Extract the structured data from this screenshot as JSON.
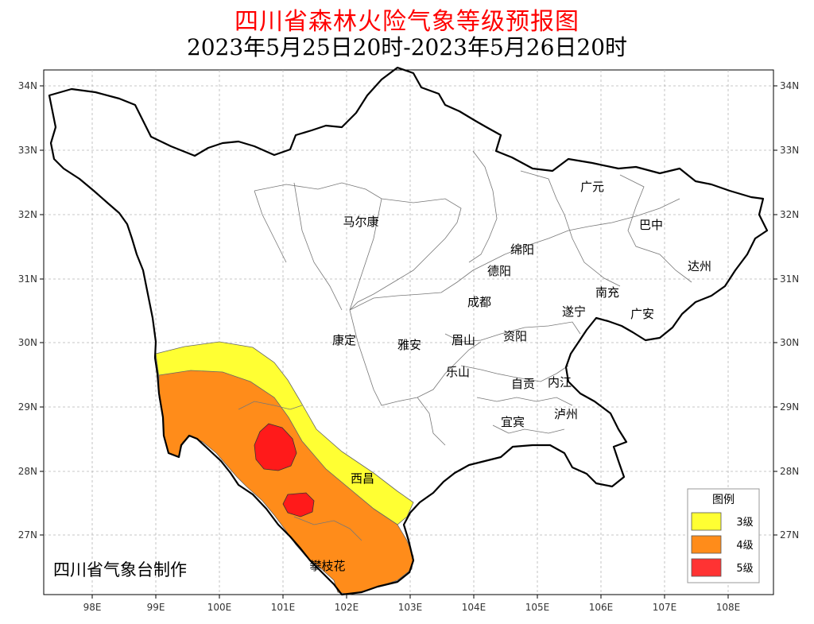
{
  "title": "四川省森林火险气象等级预报图",
  "subtitle": "2023年5月25日20时-2023年5月26日20时",
  "x_ticks": [
    "98E",
    "99E",
    "100E",
    "101E",
    "102E",
    "103E",
    "104E",
    "105E",
    "106E",
    "107E",
    "108E"
  ],
  "y_ticks": [
    "34N",
    "33N",
    "32N",
    "31N",
    "30N",
    "29N",
    "28N",
    "27N"
  ],
  "cities": [
    "马尔康",
    "广元",
    "巴中",
    "绵阳",
    "德阳",
    "达州",
    "南充",
    "成都",
    "遂宁",
    "广安",
    "康定",
    "雅安",
    "眉山",
    "资阳",
    "乐山",
    "自贡",
    "内江",
    "泸州",
    "宜宾",
    "西昌",
    "攀枝花"
  ],
  "maker": "四川省气象台制作",
  "legend": {
    "title": "图例",
    "items": [
      {
        "label": "3级",
        "color": "#ffff33"
      },
      {
        "label": "4级",
        "color": "#ff8c1a"
      },
      {
        "label": "5级",
        "color": "#ff1a1a"
      }
    ]
  }
}
